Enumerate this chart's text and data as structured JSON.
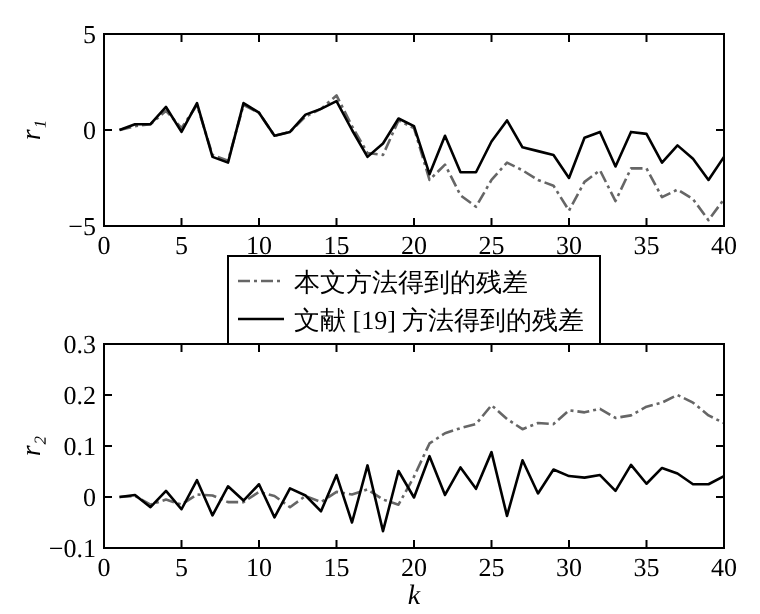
{
  "chart_data": [
    {
      "type": "line",
      "ylabel": "r₁",
      "x": [
        1,
        2,
        3,
        4,
        5,
        6,
        7,
        8,
        9,
        10,
        11,
        12,
        13,
        14,
        15,
        16,
        17,
        18,
        19,
        20,
        21,
        22,
        23,
        24,
        25,
        26,
        27,
        28,
        29,
        30,
        31,
        32,
        33,
        34,
        35,
        36,
        37,
        38,
        39,
        40
      ],
      "xlim": [
        0,
        40
      ],
      "xticks": [
        0,
        5,
        10,
        15,
        20,
        25,
        30,
        35,
        40
      ],
      "ylim": [
        -5,
        5
      ],
      "yticks": [
        {
          "value": -5,
          "label": "−5"
        },
        0,
        5
      ],
      "series": [
        {
          "color": "#666666",
          "line_style": "dashdot",
          "values": [
            0,
            0.2,
            0.3,
            1.0,
            0.1,
            1.3,
            -1.3,
            -1.6,
            1.3,
            0.9,
            -0.3,
            -0.1,
            0.7,
            1.1,
            1.8,
            0.2,
            -1.2,
            -1.3,
            0.5,
            0.1,
            -2.6,
            -1.8,
            -3.4,
            -4.0,
            -2.6,
            -1.7,
            -2.1,
            -2.6,
            -2.9,
            -4.2,
            -2.7,
            -2.1,
            -3.7,
            -2.0,
            -2.0,
            -3.5,
            -3.1,
            -3.6,
            -4.7,
            -3.6
          ]
        },
        {
          "color": "#000000",
          "line_style": "solid",
          "values": [
            0,
            0.3,
            0.3,
            1.2,
            -0.1,
            1.4,
            -1.4,
            -1.7,
            1.4,
            0.9,
            -0.3,
            -0.1,
            0.8,
            1.1,
            1.5,
            0,
            -1.4,
            -0.7,
            0.6,
            0.2,
            -2.3,
            -0.3,
            -2.2,
            -2.2,
            -0.6,
            0.5,
            -0.9,
            -1.1,
            -1.3,
            -2.5,
            -0.4,
            -0.1,
            -1.9,
            -0.1,
            -0.2,
            -1.7,
            -0.8,
            -1.5,
            -2.6,
            -1.4
          ]
        }
      ]
    },
    {
      "type": "line",
      "ylabel": "r₂",
      "xlabel": "k",
      "legend": "top",
      "x": [
        1,
        2,
        3,
        4,
        5,
        6,
        7,
        8,
        9,
        10,
        11,
        12,
        13,
        14,
        15,
        16,
        17,
        18,
        19,
        20,
        21,
        22,
        23,
        24,
        25,
        26,
        27,
        28,
        29,
        30,
        31,
        32,
        33,
        34,
        35,
        36,
        37,
        38,
        39,
        40
      ],
      "xlim": [
        0,
        40
      ],
      "xticks": [
        0,
        5,
        10,
        15,
        20,
        25,
        30,
        35,
        40
      ],
      "ylim": [
        -0.1,
        0.3
      ],
      "yticks": [
        {
          "value": -0.1,
          "label": "−0.1"
        },
        0,
        0.1,
        0.2,
        0.3
      ],
      "series": [
        {
          "name": "本文方法得到的残差",
          "color": "#666666",
          "line_style": "dashdot",
          "values": [
            0,
            0.002,
            -0.015,
            -0.005,
            -0.015,
            0.005,
            0.003,
            -0.01,
            -0.01,
            0.01,
            0.002,
            -0.02,
            0.002,
            -0.01,
            0.01,
            0.005,
            0.015,
            -0.005,
            -0.015,
            0.04,
            0.105,
            0.125,
            0.135,
            0.143,
            0.18,
            0.153,
            0.133,
            0.145,
            0.143,
            0.17,
            0.166,
            0.173,
            0.155,
            0.16,
            0.177,
            0.185,
            0.2,
            0.185,
            0.16,
            0.145
          ]
        },
        {
          "name": "文献 [19] 方法得到的残差",
          "color": "#000000",
          "line_style": "solid",
          "values": [
            0,
            0.004,
            -0.02,
            0.012,
            -0.024,
            0.033,
            -0.036,
            0.021,
            -0.007,
            0.025,
            -0.04,
            0.017,
            0.003,
            -0.028,
            0.043,
            -0.05,
            0.062,
            -0.067,
            0.051,
            -0.001,
            0.08,
            0.004,
            0.058,
            0.016,
            0.088,
            -0.037,
            0.072,
            0.007,
            0.054,
            0.041,
            0.038,
            0.043,
            0.012,
            0.063,
            0.026,
            0.057,
            0.046,
            0.025,
            0.025,
            0.041
          ]
        }
      ]
    }
  ]
}
